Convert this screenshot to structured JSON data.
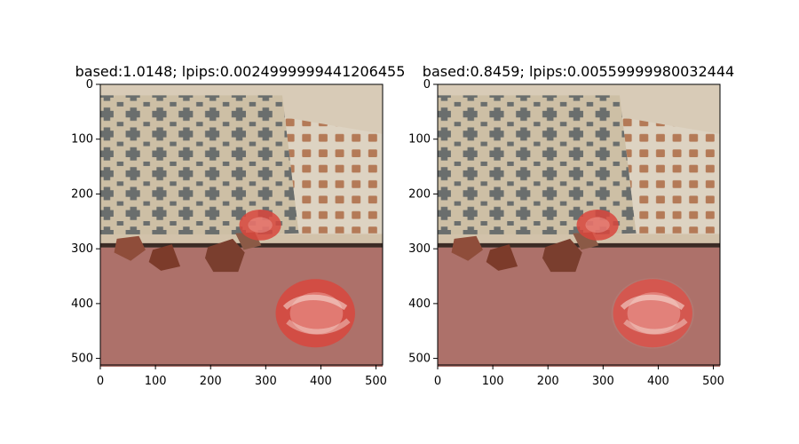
{
  "figure": {
    "background": "#ffffff"
  },
  "chart_data": [
    {
      "type": "image",
      "title": "based:1.0148; lpips:0.0024999999441206455",
      "xlim": [
        0,
        512
      ],
      "ylim": [
        512,
        0
      ],
      "xticks": [
        0,
        100,
        200,
        300,
        400,
        500
      ],
      "yticks": [
        0,
        100,
        200,
        300,
        400,
        500
      ],
      "grid": false,
      "image_description_hidden": true
    },
    {
      "type": "image",
      "title": "based:0.8459; lpips:0.00559999980032444",
      "xlim": [
        0,
        512
      ],
      "ylim": [
        512,
        0
      ],
      "xticks": [
        0,
        100,
        200,
        300,
        400,
        500
      ],
      "yticks": [
        0,
        100,
        200,
        300,
        400,
        500
      ],
      "grid": false,
      "image_description_hidden": true
    }
  ]
}
